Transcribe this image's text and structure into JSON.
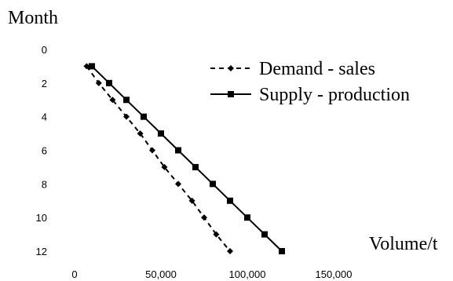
{
  "chart_data": {
    "type": "line",
    "title": "",
    "ylabel": "Month",
    "xlabel": "Volume/t",
    "xlim": [
      0,
      150000
    ],
    "ylim": [
      0,
      12
    ],
    "y_inverted": true,
    "grid": false,
    "legend_position": "top-right",
    "x_ticks": [
      "0",
      "50,000",
      "100,000",
      "150,000"
    ],
    "y_ticks": [
      "0",
      "2",
      "4",
      "6",
      "8",
      "10",
      "12"
    ],
    "series": [
      {
        "name": "Demand - sales",
        "style": "dashed",
        "marker": "diamond",
        "color": "#000000",
        "points": [
          [
            7000,
            1
          ],
          [
            14000,
            2
          ],
          [
            22000,
            3
          ],
          [
            30000,
            4
          ],
          [
            38000,
            5
          ],
          [
            45000,
            6
          ],
          [
            52000,
            7
          ],
          [
            60000,
            8
          ],
          [
            68000,
            9
          ],
          [
            75000,
            10
          ],
          [
            82000,
            11
          ],
          [
            90000,
            12
          ]
        ]
      },
      {
        "name": "Supply - production",
        "style": "solid",
        "marker": "square",
        "color": "#000000",
        "points": [
          [
            10000,
            1
          ],
          [
            20000,
            2
          ],
          [
            30000,
            3
          ],
          [
            40000,
            4
          ],
          [
            50000,
            5
          ],
          [
            60000,
            6
          ],
          [
            70000,
            7
          ],
          [
            80000,
            8
          ],
          [
            90000,
            9
          ],
          [
            100000,
            10
          ],
          [
            110000,
            11
          ],
          [
            120000,
            12
          ]
        ]
      }
    ]
  }
}
